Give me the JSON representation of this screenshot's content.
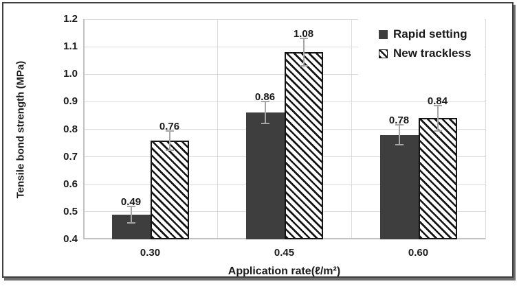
{
  "figure": {
    "background": "#ffffff",
    "border_color": "#3f3f3f",
    "shadow_color": "#6e6e6e"
  },
  "chart_data": {
    "type": "bar",
    "title": "",
    "xlabel": "Application rate(ℓ/m²)",
    "ylabel": "Tensile bond strength (MPa)",
    "categories": [
      "0.30",
      "0.45",
      "0.60"
    ],
    "series": [
      {
        "name": "Rapid setting",
        "style": "solid",
        "color": "#3e3e3e",
        "values": [
          0.49,
          0.86,
          0.78
        ],
        "errors": [
          0.03,
          0.04,
          0.035
        ],
        "labels": [
          "0.49",
          "0.86",
          "0.78"
        ]
      },
      {
        "name": "New trackless",
        "style": "hatch",
        "color": "#141414",
        "values": [
          0.76,
          1.08,
          0.84
        ],
        "errors": [
          0.035,
          0.05,
          0.045
        ],
        "labels": [
          "0.76",
          "1.08",
          "0.84"
        ]
      }
    ],
    "ylim": [
      0.4,
      1.2
    ],
    "ytick_step": 0.1,
    "yticks": [
      "1.2",
      "1.1",
      "1.0",
      "0.9",
      "0.8",
      "0.7",
      "0.6",
      "0.5",
      "0.4"
    ],
    "grid": true,
    "gridline_color": "#dcdcdc",
    "axis_line_color": "#c2c2c2",
    "error_bar_color": "#a6a6a6",
    "legend_position": "top-right"
  }
}
